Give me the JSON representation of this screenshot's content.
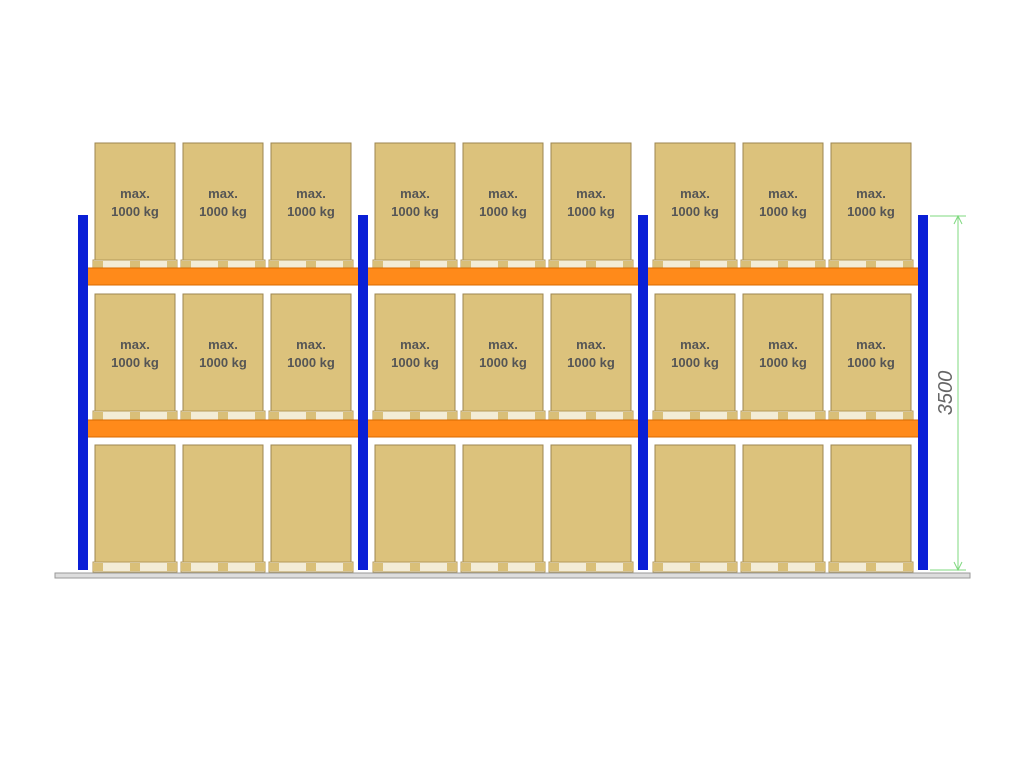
{
  "rack": {
    "levels": [
      {
        "pallets": [
          {
            "lines": [
              "max.",
              "1000 kg"
            ]
          },
          {
            "lines": [
              "max.",
              "1000 kg"
            ]
          },
          {
            "lines": [
              "max.",
              "1000 kg"
            ]
          },
          {
            "lines": [
              "max.",
              "1000 kg"
            ]
          },
          {
            "lines": [
              "max.",
              "1000 kg"
            ]
          },
          {
            "lines": [
              "max.",
              "1000 kg"
            ]
          },
          {
            "lines": [
              "max.",
              "1000 kg"
            ]
          },
          {
            "lines": [
              "max.",
              "1000 kg"
            ]
          },
          {
            "lines": [
              "max.",
              "1000 kg"
            ]
          }
        ]
      },
      {
        "pallets": [
          {
            "lines": [
              "max.",
              "1000 kg"
            ]
          },
          {
            "lines": [
              "max.",
              "1000 kg"
            ]
          },
          {
            "lines": [
              "max.",
              "1000 kg"
            ]
          },
          {
            "lines": [
              "max.",
              "1000 kg"
            ]
          },
          {
            "lines": [
              "max.",
              "1000 kg"
            ]
          },
          {
            "lines": [
              "max.",
              "1000 kg"
            ]
          },
          {
            "lines": [
              "max.",
              "1000 kg"
            ]
          },
          {
            "lines": [
              "max.",
              "1000 kg"
            ]
          },
          {
            "lines": [
              "max.",
              "1000 kg"
            ]
          }
        ]
      }
    ]
  },
  "dimension": {
    "label": "3500"
  }
}
